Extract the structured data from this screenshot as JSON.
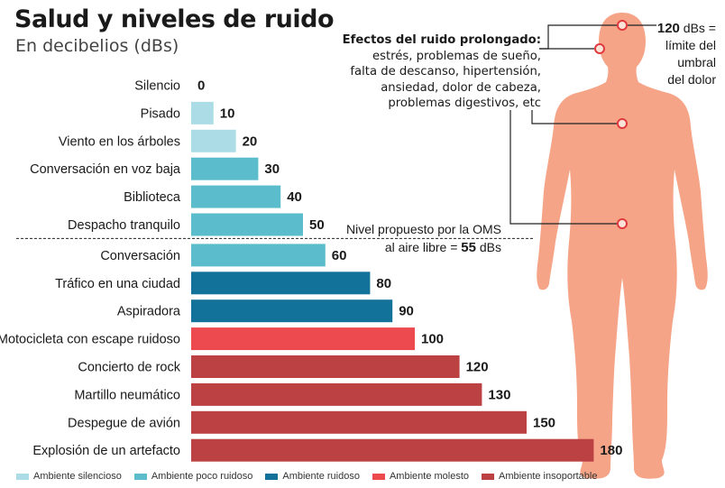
{
  "chart_data": {
    "type": "bar",
    "orientation": "horizontal",
    "title": "Salud y niveles de ruido",
    "subtitle": "En decibelios (dBs)",
    "categories": [
      "Silencio",
      "Pisado",
      "Viento en los árboles",
      "Conversación en voz baja",
      "Biblioteca",
      "Despacho tranquilo",
      "Conversación",
      "Tráfico en una ciudad",
      "Aspiradora",
      "Motocicleta con escape ruidoso",
      "Concierto de rock",
      "Martillo neumático",
      "Despegue de avión",
      "Explosión de un artefacto"
    ],
    "values": [
      0,
      10,
      20,
      30,
      40,
      50,
      60,
      80,
      90,
      100,
      120,
      130,
      150,
      180
    ],
    "value_labels": [
      "0",
      "10",
      "20",
      "30",
      "40",
      "50",
      "60",
      "80",
      "90",
      "100",
      "120",
      "130",
      "150",
      "180"
    ],
    "groups": [
      0,
      0,
      0,
      1,
      1,
      1,
      1,
      2,
      2,
      3,
      4,
      4,
      4,
      4
    ],
    "reference_line": {
      "value": 55,
      "label": "Nivel propuesto por la OMS al aire libre = 55 dBs"
    },
    "legend": [
      {
        "name": "Ambiente silencioso",
        "color": "#acdde6"
      },
      {
        "name": "Ambiente poco ruidoso",
        "color": "#5bbdcc"
      },
      {
        "name": "Ambiente ruidoso",
        "color": "#13729a"
      },
      {
        "name": "Ambiente molesto",
        "color": "#ec4a4f"
      },
      {
        "name": "Ambiente insoportable",
        "color": "#bb4143"
      }
    ],
    "legend_placement": "bottom",
    "grid": false
  },
  "who_note": {
    "line1": "Nivel propuesto por la OMS",
    "line2_prefix": "al aire libre = ",
    "value": "55",
    "unit": " dBs"
  },
  "effects": {
    "heading": "Efectos del ruido prolongado:",
    "lines": [
      "estrés, problemas de sueño,",
      "falta de descanso, hipertensión,",
      "ansiedad, dolor de cabeza,",
      "problemas digestivos, etc"
    ]
  },
  "pain_note": {
    "value": "120",
    "unit": " dBs =",
    "line2": "límite del",
    "line3": "umbral",
    "line4": "del dolor"
  },
  "colors": {
    "body": "#f6a487",
    "marker": "#e0393e",
    "line": "#222222"
  }
}
